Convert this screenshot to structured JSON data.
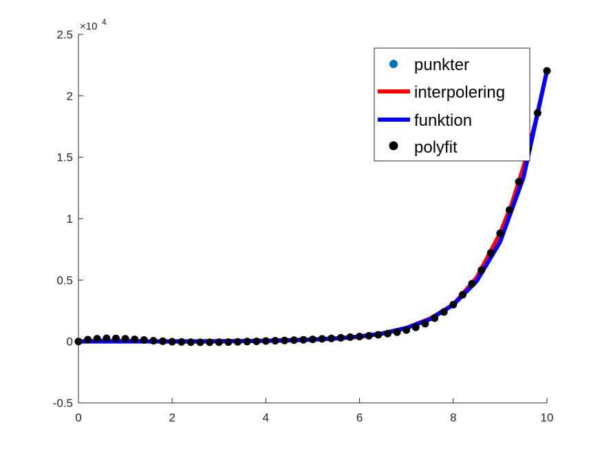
{
  "chart_data": {
    "type": "line",
    "title": "",
    "xlabel": "",
    "ylabel": "",
    "xlim": [
      0,
      10
    ],
    "ylim": [
      -5000,
      25000
    ],
    "x_ticks": [
      0,
      2,
      4,
      6,
      8,
      10
    ],
    "x_tick_labels": [
      "0",
      "2",
      "4",
      "6",
      "8",
      "10"
    ],
    "y_ticks": [
      -5000,
      0,
      5000,
      10000,
      15000,
      20000,
      25000
    ],
    "y_tick_labels": [
      "-0.5",
      "0",
      "0.5",
      "1",
      "1.5",
      "2",
      "2.5"
    ],
    "y_exponent_base": "×10",
    "y_exponent": "4",
    "grid": false,
    "legend_position": "top-right",
    "series": [
      {
        "name": "punkter",
        "style": "marker",
        "color": "#0072BD",
        "x": [
          0,
          10
        ],
        "y": [
          0,
          22026
        ]
      },
      {
        "name": "interpolering",
        "style": "line",
        "color": "#FF0000",
        "x": [
          0,
          0.5,
          1,
          1.5,
          2,
          2.5,
          3,
          3.5,
          4,
          4.5,
          5,
          5.5,
          6,
          6.5,
          7,
          7.5,
          8,
          8.5,
          9,
          9.25,
          9.5,
          9.75,
          10
        ],
        "y": [
          0,
          60,
          40,
          10,
          0,
          0,
          10,
          30,
          60,
          110,
          160,
          250,
          380,
          650,
          1100,
          1850,
          3000,
          5200,
          8800,
          11200,
          14200,
          17800,
          22026
        ]
      },
      {
        "name": "funktion",
        "style": "line",
        "color": "#0000FF",
        "x": [
          0,
          0.5,
          1,
          1.5,
          2,
          2.5,
          3,
          3.5,
          4,
          4.5,
          5,
          5.5,
          6,
          6.5,
          7,
          7.5,
          8,
          8.5,
          9,
          9.5,
          10
        ],
        "y": [
          1,
          2,
          3,
          4,
          7,
          12,
          20,
          33,
          55,
          90,
          148,
          245,
          403,
          665,
          1097,
          1808,
          2981,
          4915,
          8103,
          13360,
          22026
        ]
      },
      {
        "name": "polyfit",
        "style": "marker",
        "color": "#000000",
        "x": [
          0,
          0.2,
          0.4,
          0.6,
          0.8,
          1,
          1.2,
          1.4,
          1.6,
          1.8,
          2,
          2.2,
          2.4,
          2.6,
          2.8,
          3,
          3.2,
          3.4,
          3.6,
          3.8,
          4,
          4.2,
          4.4,
          4.6,
          4.8,
          5,
          5.2,
          5.4,
          5.6,
          5.8,
          6,
          6.2,
          6.4,
          6.6,
          6.8,
          7,
          7.2,
          7.4,
          7.6,
          7.8,
          8,
          8.2,
          8.4,
          8.6,
          8.8,
          9,
          9.2,
          9.4,
          9.6,
          9.8,
          10
        ],
        "y": [
          0,
          150,
          230,
          260,
          250,
          220,
          170,
          120,
          60,
          20,
          -20,
          -40,
          -60,
          -70,
          -70,
          -60,
          -50,
          -30,
          -10,
          10,
          40,
          60,
          80,
          110,
          140,
          170,
          210,
          250,
          300,
          350,
          400,
          460,
          540,
          640,
          760,
          930,
          1150,
          1450,
          1900,
          2400,
          3000,
          3800,
          4700,
          5800,
          7200,
          8800,
          10700,
          13000,
          15700,
          18600,
          22026
        ]
      }
    ]
  }
}
